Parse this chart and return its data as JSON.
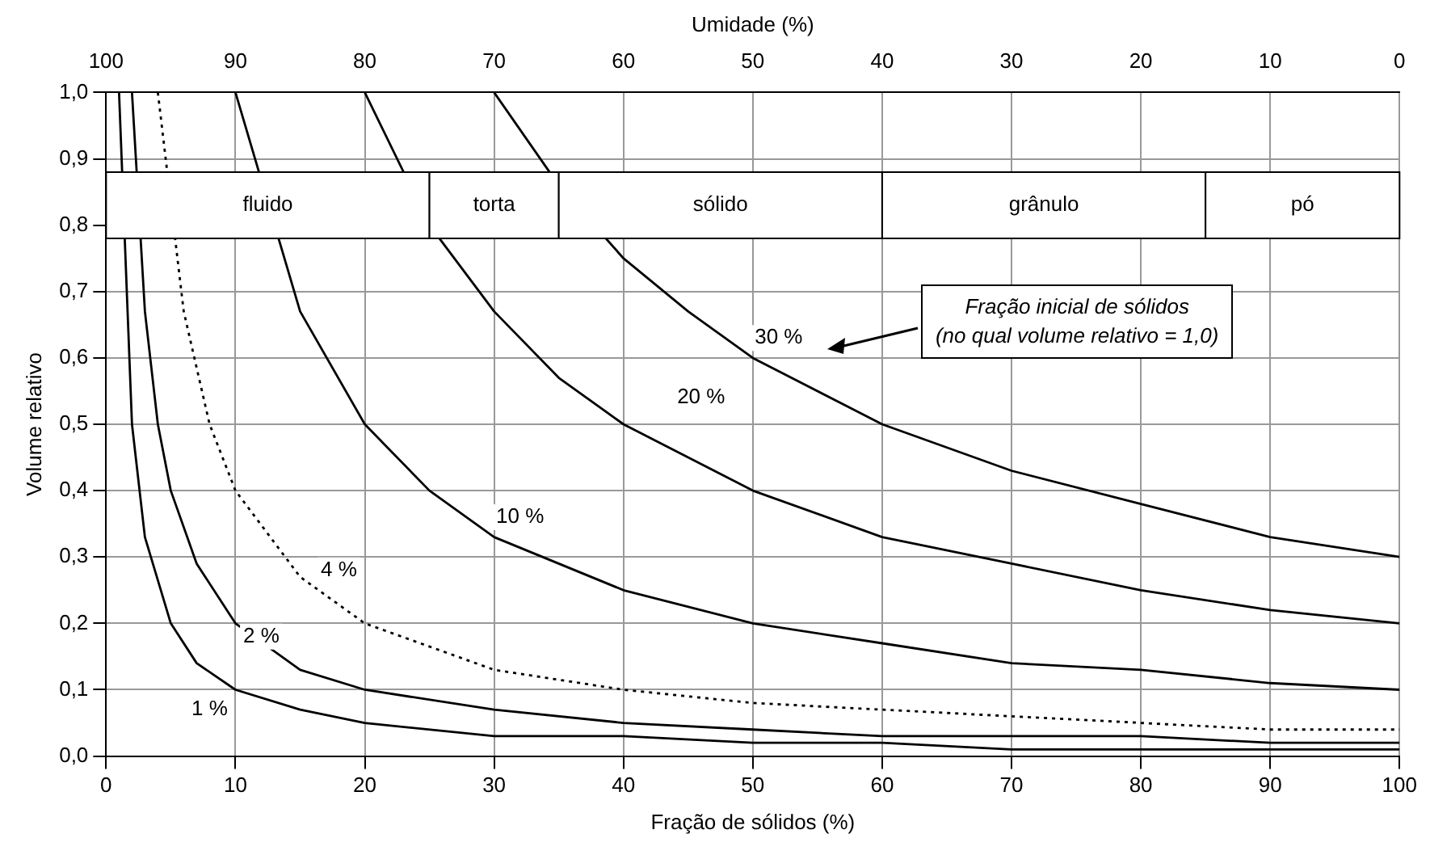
{
  "chart_data": {
    "type": "line",
    "xlabel": "Fração de sólidos (%)",
    "ylabel": "Volume relativo",
    "x2label": "Umidade (%)",
    "xlim": [
      0,
      100
    ],
    "xticks": [
      0,
      10,
      20,
      30,
      40,
      50,
      60,
      70,
      80,
      90,
      100
    ],
    "x2lim": [
      100,
      0
    ],
    "x2ticks": [
      100,
      90,
      80,
      70,
      60,
      50,
      40,
      30,
      20,
      10,
      0
    ],
    "ylim": [
      0,
      1
    ],
    "yticks": [
      {
        "value": 0,
        "label": "0,0"
      },
      {
        "value": 0.1,
        "label": "0,1"
      },
      {
        "value": 0.2,
        "label": "0,2"
      },
      {
        "value": 0.3,
        "label": "0,3"
      },
      {
        "value": 0.4,
        "label": "0,4"
      },
      {
        "value": 0.5,
        "label": "0,5"
      },
      {
        "value": 0.6,
        "label": "0,6"
      },
      {
        "value": 0.7,
        "label": "0,7"
      },
      {
        "value": 0.8,
        "label": "0,8"
      },
      {
        "value": 0.9,
        "label": "0,9"
      },
      {
        "value": 1,
        "label": "1,0"
      }
    ],
    "grid": true,
    "legend": false,
    "marker": "none",
    "series": [
      {
        "color": "#000000",
        "line_style": "solid",
        "x": [
          1,
          2,
          3,
          5,
          7,
          10,
          15,
          20,
          30,
          40,
          50,
          60,
          70,
          80,
          90,
          100
        ],
        "values": [
          1,
          0.5,
          0.33,
          0.2,
          0.14,
          0.1,
          0.07,
          0.05,
          0.03,
          0.03,
          0.02,
          0.02,
          0.01,
          0.01,
          0.01,
          0.01
        ]
      },
      {
        "color": "#000000",
        "line_style": "solid",
        "x": [
          2,
          3,
          4,
          5,
          7,
          10,
          15,
          20,
          30,
          40,
          50,
          60,
          70,
          80,
          90,
          100
        ],
        "values": [
          1,
          0.67,
          0.5,
          0.4,
          0.29,
          0.2,
          0.13,
          0.1,
          0.07,
          0.05,
          0.04,
          0.03,
          0.03,
          0.03,
          0.02,
          0.02
        ]
      },
      {
        "color": "#000000",
        "line_style": "dotted",
        "x": [
          4,
          6,
          8,
          10,
          15,
          20,
          30,
          40,
          50,
          60,
          70,
          80,
          90,
          100
        ],
        "values": [
          1,
          0.67,
          0.5,
          0.4,
          0.27,
          0.2,
          0.13,
          0.1,
          0.08,
          0.07,
          0.06,
          0.05,
          0.04,
          0.04
        ]
      },
      {
        "color": "#000000",
        "line_style": "solid",
        "x": [
          10,
          15,
          20,
          25,
          30,
          40,
          50,
          60,
          70,
          80,
          90,
          100
        ],
        "values": [
          1,
          0.67,
          0.5,
          0.4,
          0.33,
          0.25,
          0.2,
          0.17,
          0.14,
          0.13,
          0.11,
          0.1
        ]
      },
      {
        "color": "#000000",
        "line_style": "solid",
        "x": [
          20,
          25,
          30,
          35,
          40,
          50,
          60,
          70,
          80,
          90,
          100
        ],
        "values": [
          1,
          0.8,
          0.67,
          0.57,
          0.5,
          0.4,
          0.33,
          0.29,
          0.25,
          0.22,
          0.2
        ]
      },
      {
        "color": "#000000",
        "line_style": "solid",
        "x": [
          30,
          35,
          40,
          45,
          50,
          60,
          70,
          80,
          90,
          100
        ],
        "values": [
          1,
          0.86,
          0.75,
          0.67,
          0.6,
          0.5,
          0.43,
          0.38,
          0.33,
          0.3
        ]
      }
    ],
    "bands": [
      {
        "axis": "x",
        "from": 0,
        "to": 25,
        "label": "fluido"
      },
      {
        "axis": "x",
        "from": 25,
        "to": 35,
        "label": "torta"
      },
      {
        "axis": "x",
        "from": 35,
        "to": 60,
        "label": "sólido"
      },
      {
        "axis": "x",
        "from": 60,
        "to": 85,
        "label": "grânulo"
      },
      {
        "axis": "x",
        "from": 85,
        "to": 100,
        "label": "pó"
      }
    ],
    "annotations": [
      {
        "text": "1 %",
        "x": 8,
        "y": 0.07
      },
      {
        "text": "2 %",
        "x": 12,
        "y": 0.18
      },
      {
        "text": "4 %",
        "x": 18,
        "y": 0.28
      },
      {
        "text": "10 %",
        "x": 32,
        "y": 0.36
      },
      {
        "text": "20 %",
        "x": 46,
        "y": 0.54
      },
      {
        "text": "30 %",
        "x": 52,
        "y": 0.63
      },
      "Fração inicial de sólidos\n(no qual volume relativo = 1,0)"
    ]
  }
}
